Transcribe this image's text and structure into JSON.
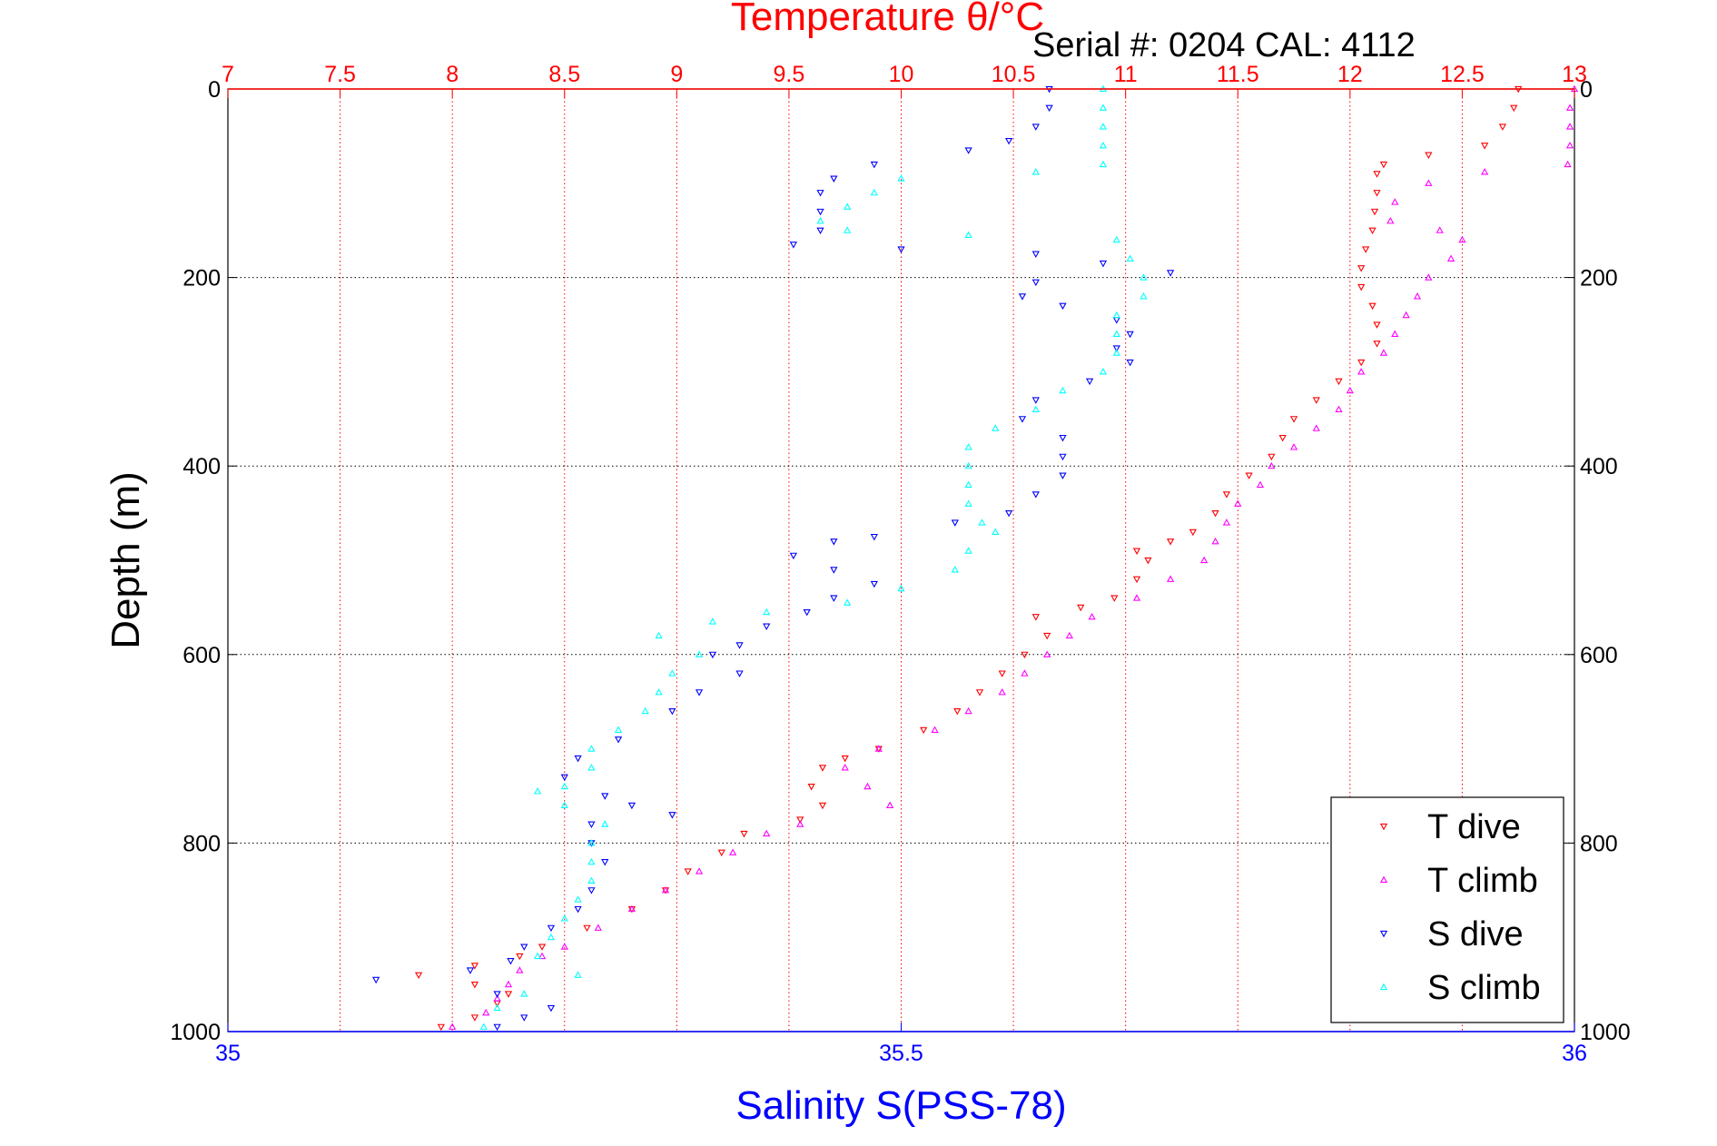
{
  "chart_data": {
    "type": "scatter",
    "title": "Temperature θ/°C",
    "annotation": "Serial #: 0204  CAL: 4112",
    "ylabel": "Depth (m)",
    "xlabel": "Salinity S(PSS-78)",
    "y_reversed": true,
    "ylim": [
      0,
      1000
    ],
    "y_ticks": [
      0,
      200,
      400,
      600,
      800,
      1000
    ],
    "y_tick_labels": [
      "0",
      "200",
      "400",
      "600",
      "800",
      "1000"
    ],
    "x_top": {
      "quantity": "temperature",
      "lim": [
        7,
        13
      ],
      "ticks": [
        7,
        7.5,
        8,
        8.5,
        9,
        9.5,
        10,
        10.5,
        11,
        11.5,
        12,
        12.5,
        13
      ],
      "tick_labels": [
        "7",
        "7.5",
        "8",
        "8.5",
        "9",
        "9.5",
        "10",
        "10.5",
        "11",
        "11.5",
        "12",
        "12.5",
        "13"
      ],
      "color": "#ff0000"
    },
    "x_bottom": {
      "quantity": "salinity",
      "lim": [
        35,
        36
      ],
      "ticks": [
        35,
        35.5,
        36
      ],
      "tick_labels": [
        "35",
        "35.5",
        "36"
      ],
      "color": "#0000ff"
    },
    "grid": true,
    "legend_position": "bottom-right",
    "series": [
      {
        "name": "T dive",
        "axis": "top",
        "color": "#ff0000",
        "marker": "triangle-down",
        "points": [
          [
            12.75,
            0
          ],
          [
            12.73,
            20
          ],
          [
            12.68,
            40
          ],
          [
            12.6,
            60
          ],
          [
            12.35,
            70
          ],
          [
            12.15,
            80
          ],
          [
            12.12,
            90
          ],
          [
            12.12,
            110
          ],
          [
            12.11,
            130
          ],
          [
            12.1,
            150
          ],
          [
            12.07,
            170
          ],
          [
            12.05,
            190
          ],
          [
            12.05,
            210
          ],
          [
            12.1,
            230
          ],
          [
            12.12,
            250
          ],
          [
            12.12,
            270
          ],
          [
            12.05,
            290
          ],
          [
            11.95,
            310
          ],
          [
            11.85,
            330
          ],
          [
            11.75,
            350
          ],
          [
            11.7,
            370
          ],
          [
            11.65,
            390
          ],
          [
            11.55,
            410
          ],
          [
            11.45,
            430
          ],
          [
            11.4,
            450
          ],
          [
            11.3,
            470
          ],
          [
            11.2,
            480
          ],
          [
            11.05,
            490
          ],
          [
            11.1,
            500
          ],
          [
            11.05,
            520
          ],
          [
            10.95,
            540
          ],
          [
            10.8,
            550
          ],
          [
            10.6,
            560
          ],
          [
            10.65,
            580
          ],
          [
            10.55,
            600
          ],
          [
            10.45,
            620
          ],
          [
            10.35,
            640
          ],
          [
            10.25,
            660
          ],
          [
            10.1,
            680
          ],
          [
            9.9,
            700
          ],
          [
            9.75,
            710
          ],
          [
            9.65,
            720
          ],
          [
            9.6,
            740
          ],
          [
            9.65,
            760
          ],
          [
            9.55,
            775
          ],
          [
            9.3,
            790
          ],
          [
            9.2,
            810
          ],
          [
            9.05,
            830
          ],
          [
            8.95,
            850
          ],
          [
            8.8,
            870
          ],
          [
            8.6,
            890
          ],
          [
            8.4,
            910
          ],
          [
            8.3,
            920
          ],
          [
            8.1,
            930
          ],
          [
            7.85,
            940
          ],
          [
            8.1,
            950
          ],
          [
            8.25,
            960
          ],
          [
            8.2,
            970
          ],
          [
            8.1,
            985
          ],
          [
            7.95,
            995
          ]
        ]
      },
      {
        "name": "T climb",
        "axis": "top",
        "color": "#ff00ff",
        "marker": "triangle-up",
        "points": [
          [
            13.0,
            0
          ],
          [
            12.98,
            20
          ],
          [
            12.98,
            40
          ],
          [
            12.98,
            60
          ],
          [
            12.97,
            80
          ],
          [
            12.6,
            88
          ],
          [
            12.35,
            100
          ],
          [
            12.2,
            120
          ],
          [
            12.18,
            140
          ],
          [
            12.4,
            150
          ],
          [
            12.5,
            160
          ],
          [
            12.45,
            180
          ],
          [
            12.35,
            200
          ],
          [
            12.3,
            220
          ],
          [
            12.25,
            240
          ],
          [
            12.2,
            260
          ],
          [
            12.15,
            280
          ],
          [
            12.05,
            300
          ],
          [
            12.0,
            320
          ],
          [
            11.95,
            340
          ],
          [
            11.85,
            360
          ],
          [
            11.75,
            380
          ],
          [
            11.65,
            400
          ],
          [
            11.6,
            420
          ],
          [
            11.5,
            440
          ],
          [
            11.45,
            460
          ],
          [
            11.4,
            480
          ],
          [
            11.35,
            500
          ],
          [
            11.2,
            520
          ],
          [
            11.05,
            540
          ],
          [
            10.85,
            560
          ],
          [
            10.75,
            580
          ],
          [
            10.65,
            600
          ],
          [
            10.55,
            620
          ],
          [
            10.45,
            640
          ],
          [
            10.3,
            660
          ],
          [
            10.15,
            680
          ],
          [
            9.9,
            700
          ],
          [
            9.75,
            720
          ],
          [
            9.85,
            740
          ],
          [
            9.95,
            760
          ],
          [
            9.55,
            780
          ],
          [
            9.4,
            790
          ],
          [
            9.25,
            810
          ],
          [
            9.1,
            830
          ],
          [
            8.95,
            850
          ],
          [
            8.8,
            870
          ],
          [
            8.65,
            890
          ],
          [
            8.5,
            910
          ],
          [
            8.4,
            920
          ],
          [
            8.3,
            935
          ],
          [
            8.25,
            950
          ],
          [
            8.2,
            965
          ],
          [
            8.15,
            980
          ],
          [
            8.0,
            995
          ]
        ]
      },
      {
        "name": "S dive",
        "axis": "bottom",
        "color": "#0000ff",
        "marker": "triangle-down",
        "points": [
          [
            35.61,
            0
          ],
          [
            35.61,
            20
          ],
          [
            35.6,
            40
          ],
          [
            35.58,
            55
          ],
          [
            35.55,
            65
          ],
          [
            35.48,
            80
          ],
          [
            35.45,
            95
          ],
          [
            35.44,
            110
          ],
          [
            35.44,
            130
          ],
          [
            35.44,
            150
          ],
          [
            35.42,
            165
          ],
          [
            35.5,
            170
          ],
          [
            35.6,
            175
          ],
          [
            35.65,
            185
          ],
          [
            35.7,
            195
          ],
          [
            35.6,
            205
          ],
          [
            35.59,
            220
          ],
          [
            35.62,
            230
          ],
          [
            35.66,
            245
          ],
          [
            35.67,
            260
          ],
          [
            35.66,
            275
          ],
          [
            35.67,
            290
          ],
          [
            35.64,
            310
          ],
          [
            35.6,
            330
          ],
          [
            35.59,
            350
          ],
          [
            35.62,
            370
          ],
          [
            35.62,
            390
          ],
          [
            35.62,
            410
          ],
          [
            35.6,
            430
          ],
          [
            35.58,
            450
          ],
          [
            35.54,
            460
          ],
          [
            35.48,
            475
          ],
          [
            35.45,
            480
          ],
          [
            35.42,
            495
          ],
          [
            35.45,
            510
          ],
          [
            35.48,
            525
          ],
          [
            35.45,
            540
          ],
          [
            35.43,
            555
          ],
          [
            35.4,
            570
          ],
          [
            35.38,
            590
          ],
          [
            35.36,
            600
          ],
          [
            35.38,
            620
          ],
          [
            35.35,
            640
          ],
          [
            35.33,
            660
          ],
          [
            35.29,
            690
          ],
          [
            35.26,
            710
          ],
          [
            35.25,
            730
          ],
          [
            35.28,
            750
          ],
          [
            35.3,
            760
          ],
          [
            35.33,
            770
          ],
          [
            35.27,
            780
          ],
          [
            35.27,
            800
          ],
          [
            35.28,
            820
          ],
          [
            35.27,
            850
          ],
          [
            35.26,
            870
          ],
          [
            35.24,
            890
          ],
          [
            35.22,
            910
          ],
          [
            35.21,
            925
          ],
          [
            35.18,
            935
          ],
          [
            35.11,
            945
          ],
          [
            35.2,
            960
          ],
          [
            35.24,
            975
          ],
          [
            35.22,
            985
          ],
          [
            35.2,
            995
          ]
        ]
      },
      {
        "name": "S climb",
        "axis": "bottom",
        "color": "#00ffff",
        "marker": "triangle-up",
        "points": [
          [
            35.65,
            0
          ],
          [
            35.65,
            20
          ],
          [
            35.65,
            40
          ],
          [
            35.65,
            60
          ],
          [
            35.65,
            80
          ],
          [
            35.6,
            88
          ],
          [
            35.5,
            95
          ],
          [
            35.48,
            110
          ],
          [
            35.46,
            125
          ],
          [
            35.44,
            140
          ],
          [
            35.46,
            150
          ],
          [
            35.55,
            155
          ],
          [
            35.66,
            160
          ],
          [
            35.67,
            180
          ],
          [
            35.68,
            200
          ],
          [
            35.68,
            220
          ],
          [
            35.66,
            240
          ],
          [
            35.66,
            260
          ],
          [
            35.66,
            280
          ],
          [
            35.65,
            300
          ],
          [
            35.62,
            320
          ],
          [
            35.6,
            340
          ],
          [
            35.57,
            360
          ],
          [
            35.55,
            380
          ],
          [
            35.55,
            400
          ],
          [
            35.55,
            420
          ],
          [
            35.55,
            440
          ],
          [
            35.56,
            460
          ],
          [
            35.57,
            470
          ],
          [
            35.55,
            490
          ],
          [
            35.54,
            510
          ],
          [
            35.5,
            530
          ],
          [
            35.46,
            545
          ],
          [
            35.4,
            555
          ],
          [
            35.36,
            565
          ],
          [
            35.32,
            580
          ],
          [
            35.35,
            600
          ],
          [
            35.33,
            620
          ],
          [
            35.32,
            640
          ],
          [
            35.31,
            660
          ],
          [
            35.29,
            680
          ],
          [
            35.27,
            700
          ],
          [
            35.27,
            720
          ],
          [
            35.25,
            740
          ],
          [
            35.23,
            745
          ],
          [
            35.25,
            760
          ],
          [
            35.28,
            780
          ],
          [
            35.27,
            800
          ],
          [
            35.27,
            820
          ],
          [
            35.27,
            840
          ],
          [
            35.26,
            860
          ],
          [
            35.25,
            880
          ],
          [
            35.24,
            900
          ],
          [
            35.23,
            920
          ],
          [
            35.26,
            940
          ],
          [
            35.22,
            960
          ],
          [
            35.2,
            975
          ],
          [
            35.19,
            995
          ]
        ]
      }
    ]
  }
}
